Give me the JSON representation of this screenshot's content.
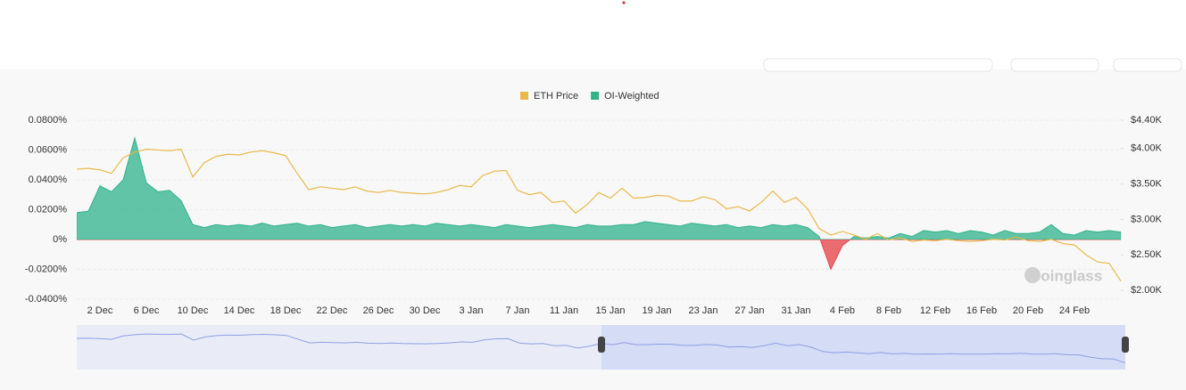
{
  "chart_data": {
    "type": "funding-area",
    "watermark": "coinglass",
    "categories": [
      null,
      null,
      "2 Dec",
      null,
      null,
      null,
      "6 Dec",
      null,
      null,
      null,
      "10 Dec",
      null,
      null,
      null,
      "14 Dec",
      null,
      null,
      null,
      "18 Dec",
      null,
      null,
      null,
      "22 Dec",
      null,
      null,
      null,
      "26 Dec",
      null,
      null,
      null,
      "30 Dec",
      null,
      null,
      null,
      "3 Jan",
      null,
      null,
      null,
      "7 Jan",
      null,
      null,
      null,
      "11 Jan",
      null,
      null,
      null,
      "15 Jan",
      null,
      null,
      null,
      "19 Jan",
      null,
      null,
      null,
      "23 Jan",
      null,
      null,
      null,
      "27 Jan",
      null,
      null,
      null,
      "31 Jan",
      null,
      null,
      null,
      "4 Feb",
      null,
      null,
      null,
      "8 Feb",
      null,
      null,
      null,
      "12 Feb",
      null,
      null,
      null,
      "16 Feb",
      null,
      null,
      null,
      "20 Feb",
      null,
      null,
      null,
      "24 Feb",
      null,
      null,
      null,
      null
    ],
    "series": [
      {
        "name": "ETH Price",
        "color": "#e9b949",
        "axis": "y2",
        "values": [
          3710,
          3720,
          3700,
          3650,
          3870,
          3950,
          3990,
          3980,
          3970,
          3990,
          3600,
          3800,
          3890,
          3920,
          3910,
          3950,
          3970,
          3940,
          3900,
          3650,
          3420,
          3460,
          3440,
          3420,
          3460,
          3400,
          3380,
          3410,
          3380,
          3370,
          3360,
          3380,
          3420,
          3480,
          3460,
          3620,
          3680,
          3690,
          3410,
          3350,
          3380,
          3240,
          3260,
          3090,
          3210,
          3380,
          3300,
          3440,
          3300,
          3310,
          3340,
          3330,
          3260,
          3260,
          3320,
          3280,
          3150,
          3180,
          3120,
          3240,
          3400,
          3240,
          3310,
          3150,
          2870,
          2780,
          2830,
          2780,
          2720,
          2800,
          2710,
          2740,
          2690,
          2710,
          2700,
          2720,
          2700,
          2690,
          2700,
          2720,
          2710,
          2750,
          2700,
          2690,
          2720,
          2660,
          2640,
          2500,
          2400,
          2380,
          2130
        ]
      },
      {
        "name": "OI-Weighted",
        "color": "#2fb38b",
        "negative_color": "#e5484d",
        "values": [
          0.018,
          0.019,
          0.036,
          0.032,
          0.04,
          0.068,
          0.038,
          0.032,
          0.033,
          0.026,
          0.01,
          0.008,
          0.01,
          0.009,
          0.01,
          0.009,
          0.011,
          0.009,
          0.01,
          0.011,
          0.009,
          0.01,
          0.008,
          0.009,
          0.01,
          0.008,
          0.009,
          0.01,
          0.009,
          0.01,
          0.009,
          0.011,
          0.01,
          0.009,
          0.01,
          0.009,
          0.008,
          0.01,
          0.009,
          0.008,
          0.009,
          0.01,
          0.009,
          0.008,
          0.01,
          0.009,
          0.009,
          0.01,
          0.01,
          0.012,
          0.011,
          0.01,
          0.009,
          0.011,
          0.01,
          0.009,
          0.01,
          0.008,
          0.009,
          0.008,
          0.01,
          0.009,
          0.01,
          0.008,
          0.002,
          -0.02,
          -0.004,
          0.002,
          0.001,
          0.002,
          0.001,
          0.004,
          0.002,
          0.006,
          0.005,
          0.006,
          0.004,
          0.006,
          0.005,
          0.003,
          0.006,
          0.004,
          0.004,
          0.005,
          0.01,
          0.004,
          0.003,
          0.006,
          0.005,
          0.006,
          0.005
        ]
      }
    ],
    "ylim": [
      -0.04,
      0.08
    ],
    "yticks": [
      {
        "value": -0.04,
        "label": "-0.0400%"
      },
      {
        "value": -0.02,
        "label": "-0.0200%"
      },
      {
        "value": 0,
        "label": "0%"
      },
      {
        "value": 0.02,
        "label": "0.0200%"
      },
      {
        "value": 0.04,
        "label": "0.0400%"
      },
      {
        "value": 0.06,
        "label": "0.0600%"
      },
      {
        "value": 0.08,
        "label": "0.0800%"
      }
    ],
    "y2lim": [
      1875,
      4400
    ],
    "y2ticks": [
      {
        "value": 2000,
        "label": "$2.00K"
      },
      {
        "value": 2500,
        "label": "$2.50K"
      },
      {
        "value": 3000,
        "label": "$3.00K"
      },
      {
        "value": 3500,
        "label": "$3.50K"
      },
      {
        "value": 4000,
        "label": "$4.00K"
      },
      {
        "value": 4400,
        "label": "$4.40K"
      }
    ],
    "grid": true
  }
}
